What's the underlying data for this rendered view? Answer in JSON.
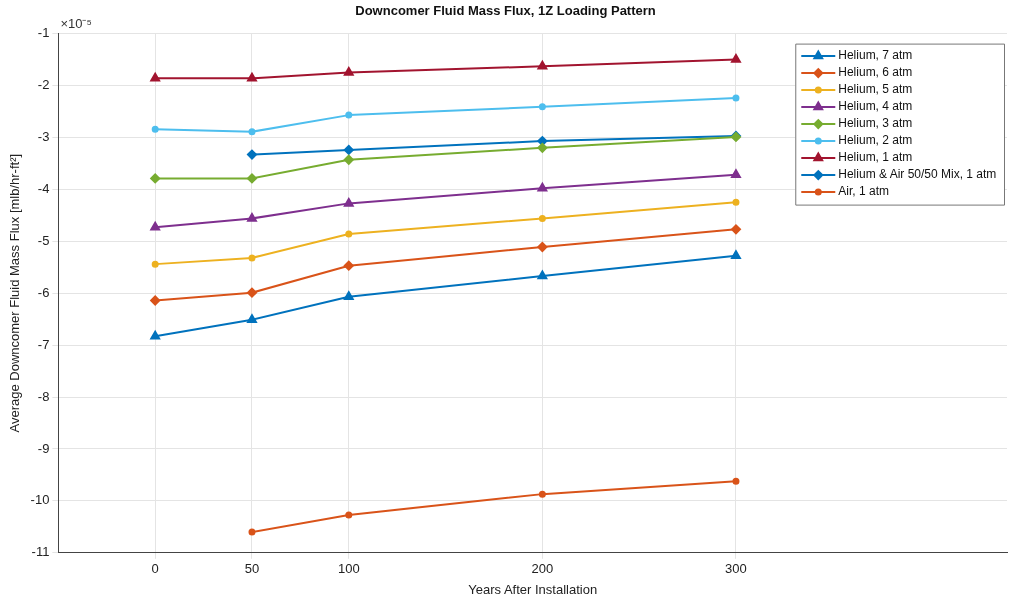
{
  "chart_data": {
    "type": "line",
    "title": "Downcomer Fluid Mass Flux, 1Z Loading Pattern",
    "xlabel": "Years After Installation",
    "ylabel": "Average Downcomer Fluid Mass Flux [mlb/hr-ft²]",
    "annotations": [
      "×10⁻⁵"
    ],
    "x": [
      0,
      50,
      100,
      200,
      300
    ],
    "series": [
      {
        "name": "Helium, 7 atm",
        "color": "#0072bd",
        "marker": "triangle",
        "values": [
          -6.83,
          -6.51,
          -6.07,
          -5.67,
          -5.28
        ]
      },
      {
        "name": "Helium, 6 atm",
        "color": "#d95319",
        "marker": "diamond",
        "values": [
          -6.14,
          -5.99,
          -5.47,
          -5.11,
          -4.77
        ]
      },
      {
        "name": "Helium, 5 atm",
        "color": "#edb120",
        "marker": "circle",
        "values": [
          -5.44,
          -5.32,
          -4.86,
          -4.56,
          -4.25
        ]
      },
      {
        "name": "Helium, 4 atm",
        "color": "#7e2f8e",
        "marker": "triangle",
        "values": [
          -4.73,
          -4.56,
          -4.27,
          -3.98,
          -3.72
        ]
      },
      {
        "name": "Helium, 3 atm",
        "color": "#77ac30",
        "marker": "diamond",
        "values": [
          -3.79,
          -3.79,
          -3.43,
          -3.2,
          -2.99
        ]
      },
      {
        "name": "Helium, 2 atm",
        "color": "#4dbeee",
        "marker": "circle",
        "values": [
          -2.84,
          -2.89,
          -2.57,
          -2.41,
          -2.24
        ]
      },
      {
        "name": "Helium, 1 atm",
        "color": "#a2142f",
        "marker": "triangle",
        "values": [
          -1.86,
          -1.86,
          -1.75,
          -1.63,
          -1.5
        ]
      },
      {
        "name": "Helium & Air 50/50 Mix, 1 atm",
        "color": "#0072bd",
        "marker": "diamond",
        "values": [
          null,
          -3.33,
          -3.24,
          -3.07,
          -2.97
        ]
      },
      {
        "name": "Air, 1 atm",
        "color": "#d95319",
        "marker": "circle",
        "values": [
          null,
          -10.6,
          -10.27,
          -9.87,
          -9.62
        ]
      }
    ],
    "xlim": [
      -50,
      440
    ],
    "xticks": [
      0,
      50,
      100,
      200,
      300
    ],
    "ylim": [
      -11,
      -1
    ],
    "yticks": [
      -11,
      -10,
      -9,
      -8,
      -7,
      -6,
      -5,
      -4,
      -3,
      -2,
      -1
    ],
    "grid": true,
    "legend": "top right",
    "line_style": "solid"
  }
}
